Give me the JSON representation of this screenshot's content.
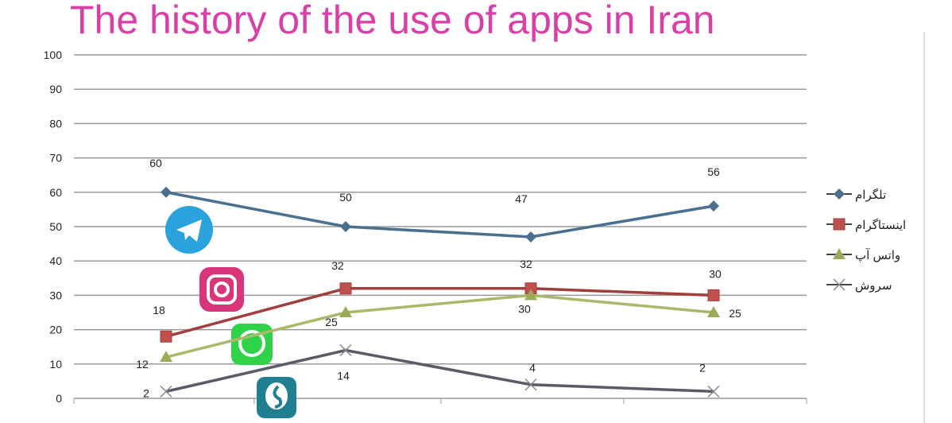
{
  "chart_data": {
    "type": "line",
    "title": "The history of the use of apps in Iran",
    "categories": [
      "",
      "",
      "",
      ""
    ],
    "ylim": [
      0,
      100
    ],
    "yticks": [
      0,
      10,
      20,
      30,
      40,
      50,
      60,
      70,
      80,
      90,
      100
    ],
    "grid": true,
    "legend": "right",
    "series": [
      {
        "name": "تلگرام",
        "values": [
          60,
          50,
          47,
          56
        ],
        "color": "#4a6f8f",
        "marker": "diamond",
        "icon": "telegram-icon"
      },
      {
        "name": "اینستاگرام",
        "values": [
          18,
          32,
          32,
          30
        ],
        "color": "#a0403e",
        "marker": "square",
        "icon": "instagram-icon"
      },
      {
        "name": "واتس آپ",
        "values": [
          12,
          25,
          30,
          25
        ],
        "color": "#a9b96a",
        "marker": "triangle",
        "icon": "whatsapp-icon"
      },
      {
        "name": "سروش",
        "values": [
          2,
          14,
          4,
          2
        ],
        "color": "#5c5a68",
        "marker": "x",
        "icon": "soroush-icon"
      }
    ]
  }
}
